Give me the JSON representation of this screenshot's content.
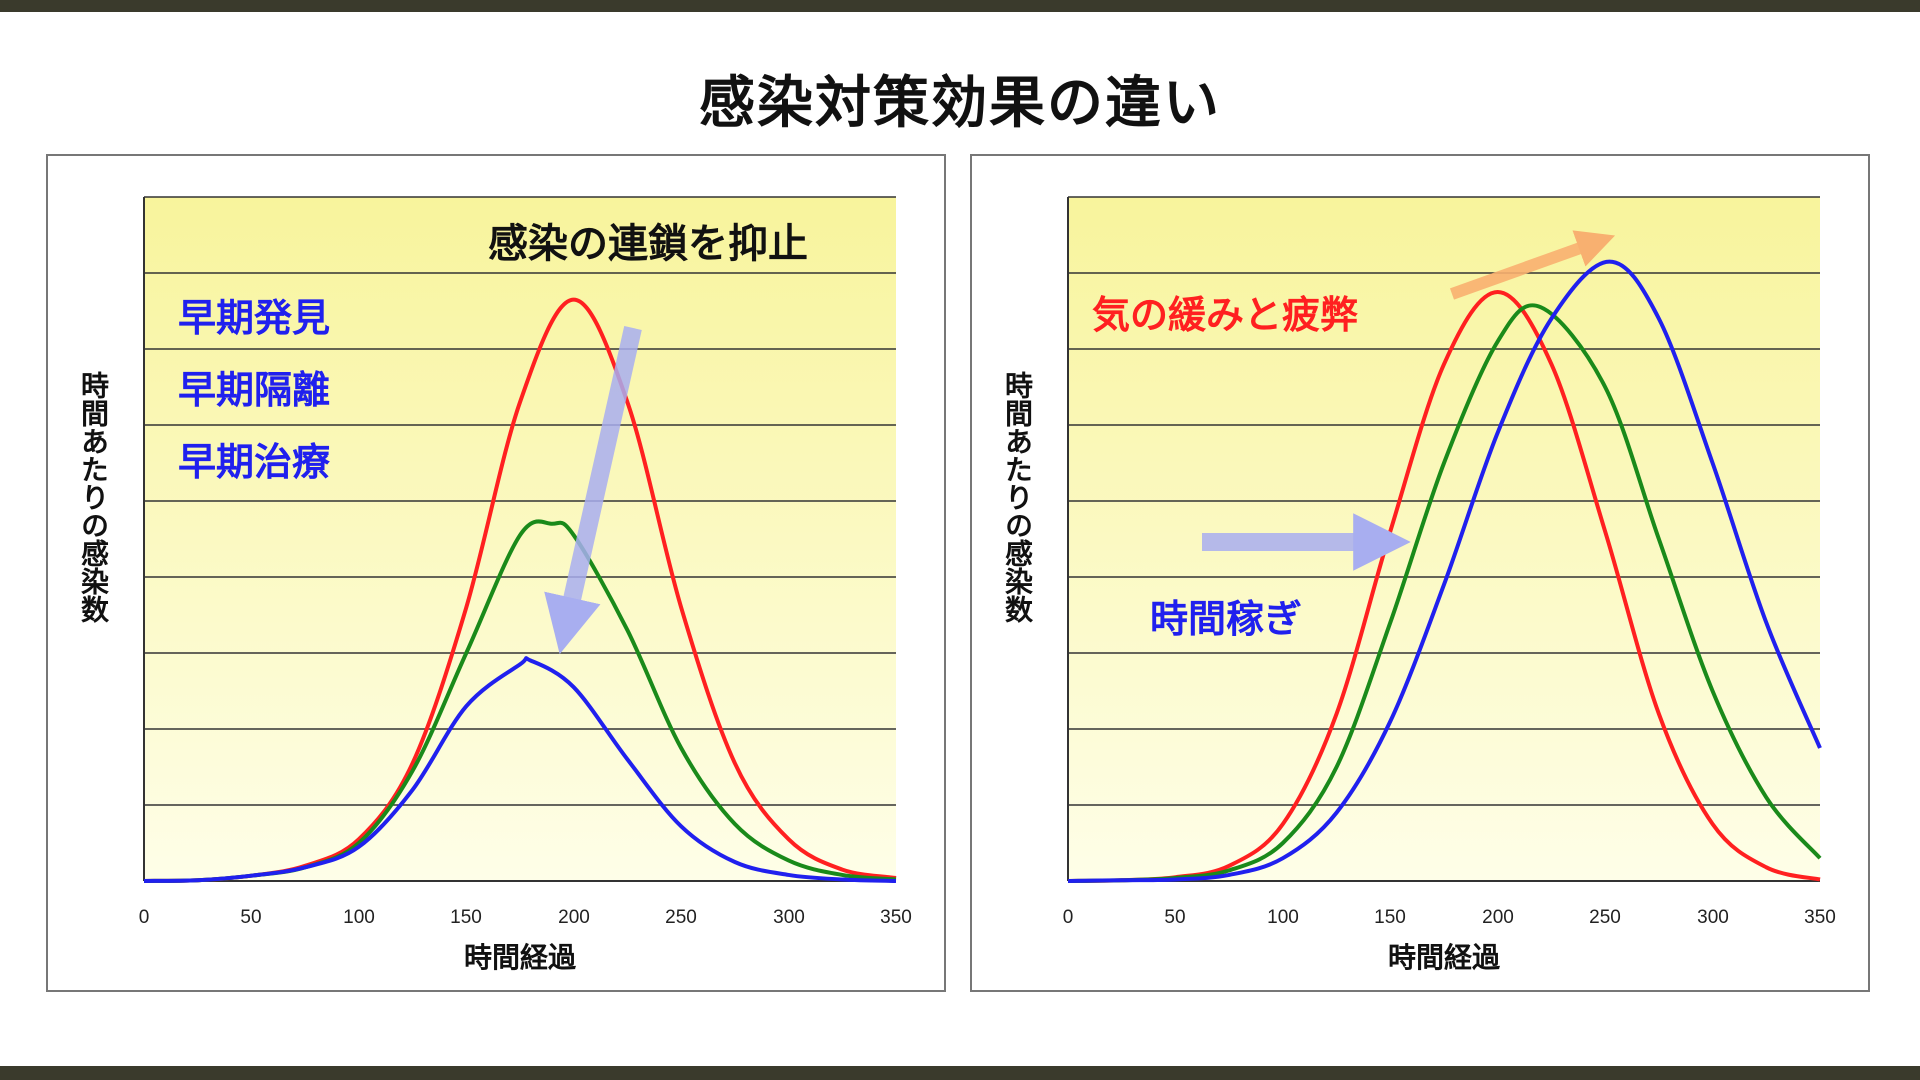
{
  "title": "感染対策効果の違い",
  "colors": {
    "plot_bg_top": "#f8f49c",
    "plot_bg_bottom": "#fefee8",
    "red": "#ff2020",
    "green": "#1a8a1a",
    "blue": "#2020ee",
    "arrow_blue": "#a8aef0",
    "arrow_orange": "#f8b070",
    "band": "#3a3a2c"
  },
  "chart_data": [
    {
      "type": "line",
      "xlabel": "時間経過",
      "ylabel": "時間あたりの感染数",
      "xlim": [
        0,
        350
      ],
      "ylim": [
        0,
        9
      ],
      "xticks": [
        0,
        50,
        100,
        150,
        200,
        250,
        300,
        350
      ],
      "grid": true,
      "annotations": [
        {
          "text": "感染の連鎖を抑止",
          "color": "#111111"
        },
        {
          "text": "早期発見",
          "color": "#2020ee"
        },
        {
          "text": "早期隔離",
          "color": "#2020ee"
        },
        {
          "text": "早期治療",
          "color": "#2020ee"
        }
      ],
      "series": [
        {
          "color": "#ff2020",
          "values": [
            [
              0,
              0
            ],
            [
              25,
              0.01
            ],
            [
              50,
              0.07
            ],
            [
              75,
              0.2
            ],
            [
              100,
              0.55
            ],
            [
              125,
              1.55
            ],
            [
              150,
              3.6
            ],
            [
              175,
              6.3
            ],
            [
              200,
              7.65
            ],
            [
              225,
              6.3
            ],
            [
              250,
              3.6
            ],
            [
              275,
              1.55
            ],
            [
              300,
              0.55
            ],
            [
              325,
              0.15
            ],
            [
              350,
              0.04
            ]
          ]
        },
        {
          "color": "#1a8a1a",
          "values": [
            [
              0,
              0
            ],
            [
              25,
              0.01
            ],
            [
              50,
              0.07
            ],
            [
              75,
              0.18
            ],
            [
              100,
              0.5
            ],
            [
              125,
              1.45
            ],
            [
              150,
              3.0
            ],
            [
              175,
              4.55
            ],
            [
              190,
              4.7
            ],
            [
              200,
              4.55
            ],
            [
              225,
              3.3
            ],
            [
              250,
              1.75
            ],
            [
              275,
              0.75
            ],
            [
              300,
              0.27
            ],
            [
              325,
              0.08
            ],
            [
              350,
              0.02
            ]
          ]
        },
        {
          "color": "#2020ee",
          "values": [
            [
              0,
              0
            ],
            [
              25,
              0.01
            ],
            [
              50,
              0.07
            ],
            [
              75,
              0.18
            ],
            [
              100,
              0.45
            ],
            [
              125,
              1.2
            ],
            [
              150,
              2.3
            ],
            [
              175,
              2.85
            ],
            [
              180,
              2.9
            ],
            [
              200,
              2.55
            ],
            [
              225,
              1.6
            ],
            [
              250,
              0.72
            ],
            [
              275,
              0.25
            ],
            [
              300,
              0.08
            ],
            [
              325,
              0.02
            ],
            [
              350,
              0
            ]
          ]
        }
      ]
    },
    {
      "type": "line",
      "xlabel": "時間経過",
      "ylabel": "時間あたりの感染数",
      "xlim": [
        0,
        350
      ],
      "ylim": [
        0,
        9
      ],
      "xticks": [
        0,
        50,
        100,
        150,
        200,
        250,
        300,
        350
      ],
      "grid": true,
      "annotations": [
        {
          "text": "気の緩みと疲弊",
          "color": "#ff2020"
        },
        {
          "text": "時間稼ぎ",
          "color": "#2020ee"
        }
      ],
      "series": [
        {
          "color": "#ff2020",
          "values": [
            [
              0,
              0
            ],
            [
              25,
              0.01
            ],
            [
              50,
              0.05
            ],
            [
              75,
              0.2
            ],
            [
              100,
              0.75
            ],
            [
              125,
              2.2
            ],
            [
              150,
              4.6
            ],
            [
              175,
              6.8
            ],
            [
              200,
              7.75
            ],
            [
              225,
              6.8
            ],
            [
              250,
              4.6
            ],
            [
              275,
              2.2
            ],
            [
              300,
              0.75
            ],
            [
              325,
              0.18
            ],
            [
              350,
              0.02
            ]
          ]
        },
        {
          "color": "#1a8a1a",
          "values": [
            [
              0,
              0
            ],
            [
              25,
              0.01
            ],
            [
              50,
              0.04
            ],
            [
              75,
              0.14
            ],
            [
              100,
              0.5
            ],
            [
              125,
              1.5
            ],
            [
              150,
              3.4
            ],
            [
              175,
              5.5
            ],
            [
              200,
              7.1
            ],
            [
              220,
              7.55
            ],
            [
              250,
              6.5
            ],
            [
              275,
              4.5
            ],
            [
              300,
              2.5
            ],
            [
              325,
              1.1
            ],
            [
              350,
              0.3
            ]
          ]
        },
        {
          "color": "#2020ee",
          "values": [
            [
              0,
              0
            ],
            [
              25,
              0.01
            ],
            [
              50,
              0.02
            ],
            [
              75,
              0.08
            ],
            [
              100,
              0.3
            ],
            [
              125,
              0.9
            ],
            [
              150,
              2.1
            ],
            [
              175,
              3.9
            ],
            [
              200,
              5.9
            ],
            [
              225,
              7.4
            ],
            [
              252,
              8.15
            ],
            [
              275,
              7.4
            ],
            [
              300,
              5.5
            ],
            [
              325,
              3.4
            ],
            [
              350,
              1.75
            ]
          ]
        }
      ]
    }
  ]
}
